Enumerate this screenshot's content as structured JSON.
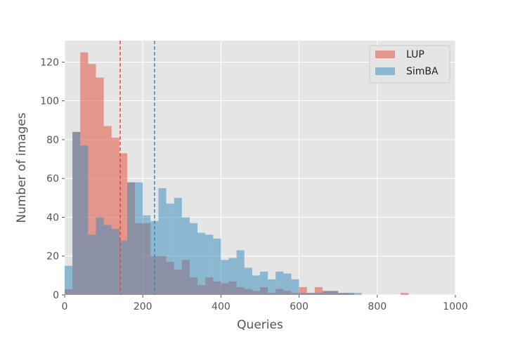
{
  "chart_data": {
    "type": "bar",
    "xlabel": "Queries",
    "ylabel": "Number of images",
    "xlim": [
      0,
      1000
    ],
    "ylim": [
      0,
      131
    ],
    "xticks": [
      0,
      200,
      400,
      600,
      800,
      1000
    ],
    "yticks": [
      0,
      20,
      40,
      60,
      80,
      100,
      120
    ],
    "grid": true,
    "legend_position": "top-right",
    "bin_width": 20,
    "series": [
      {
        "name": "LUP",
        "color": "#E24A33",
        "mean_line": 142,
        "bins": [
          [
            0,
            3
          ],
          [
            20,
            84
          ],
          [
            40,
            125
          ],
          [
            60,
            119
          ],
          [
            80,
            112
          ],
          [
            100,
            87
          ],
          [
            120,
            81
          ],
          [
            140,
            73
          ],
          [
            160,
            58
          ],
          [
            180,
            37
          ],
          [
            200,
            37
          ],
          [
            220,
            20
          ],
          [
            240,
            20
          ],
          [
            260,
            17
          ],
          [
            280,
            13
          ],
          [
            300,
            18
          ],
          [
            320,
            9
          ],
          [
            340,
            5
          ],
          [
            360,
            9
          ],
          [
            380,
            7
          ],
          [
            400,
            6
          ],
          [
            420,
            7
          ],
          [
            440,
            4
          ],
          [
            460,
            3
          ],
          [
            480,
            2
          ],
          [
            500,
            4
          ],
          [
            520,
            1
          ],
          [
            540,
            3
          ],
          [
            560,
            2
          ],
          [
            580,
            1
          ],
          [
            600,
            4
          ],
          [
            620,
            1
          ],
          [
            640,
            4
          ],
          [
            660,
            2
          ],
          [
            680,
            2
          ],
          [
            700,
            1
          ],
          [
            720,
            1
          ],
          [
            860,
            1
          ]
        ]
      },
      {
        "name": "SimBA",
        "color": "#348ABD",
        "mean_line": 230,
        "bins": [
          [
            0,
            15
          ],
          [
            20,
            84
          ],
          [
            40,
            77
          ],
          [
            60,
            31
          ],
          [
            80,
            40
          ],
          [
            100,
            36
          ],
          [
            120,
            34
          ],
          [
            140,
            28
          ],
          [
            160,
            58
          ],
          [
            180,
            58
          ],
          [
            200,
            41
          ],
          [
            220,
            38
          ],
          [
            240,
            55
          ],
          [
            260,
            47
          ],
          [
            280,
            50
          ],
          [
            300,
            40
          ],
          [
            320,
            37
          ],
          [
            340,
            32
          ],
          [
            360,
            31
          ],
          [
            380,
            29
          ],
          [
            400,
            18
          ],
          [
            420,
            19
          ],
          [
            440,
            23
          ],
          [
            460,
            14
          ],
          [
            480,
            10
          ],
          [
            500,
            12
          ],
          [
            520,
            8
          ],
          [
            540,
            12
          ],
          [
            560,
            11
          ],
          [
            580,
            8
          ],
          [
            600,
            1
          ],
          [
            620,
            1
          ],
          [
            640,
            1
          ],
          [
            660,
            2
          ],
          [
            680,
            2
          ],
          [
            700,
            1
          ],
          [
            720,
            1
          ],
          [
            740,
            1
          ]
        ]
      }
    ]
  }
}
